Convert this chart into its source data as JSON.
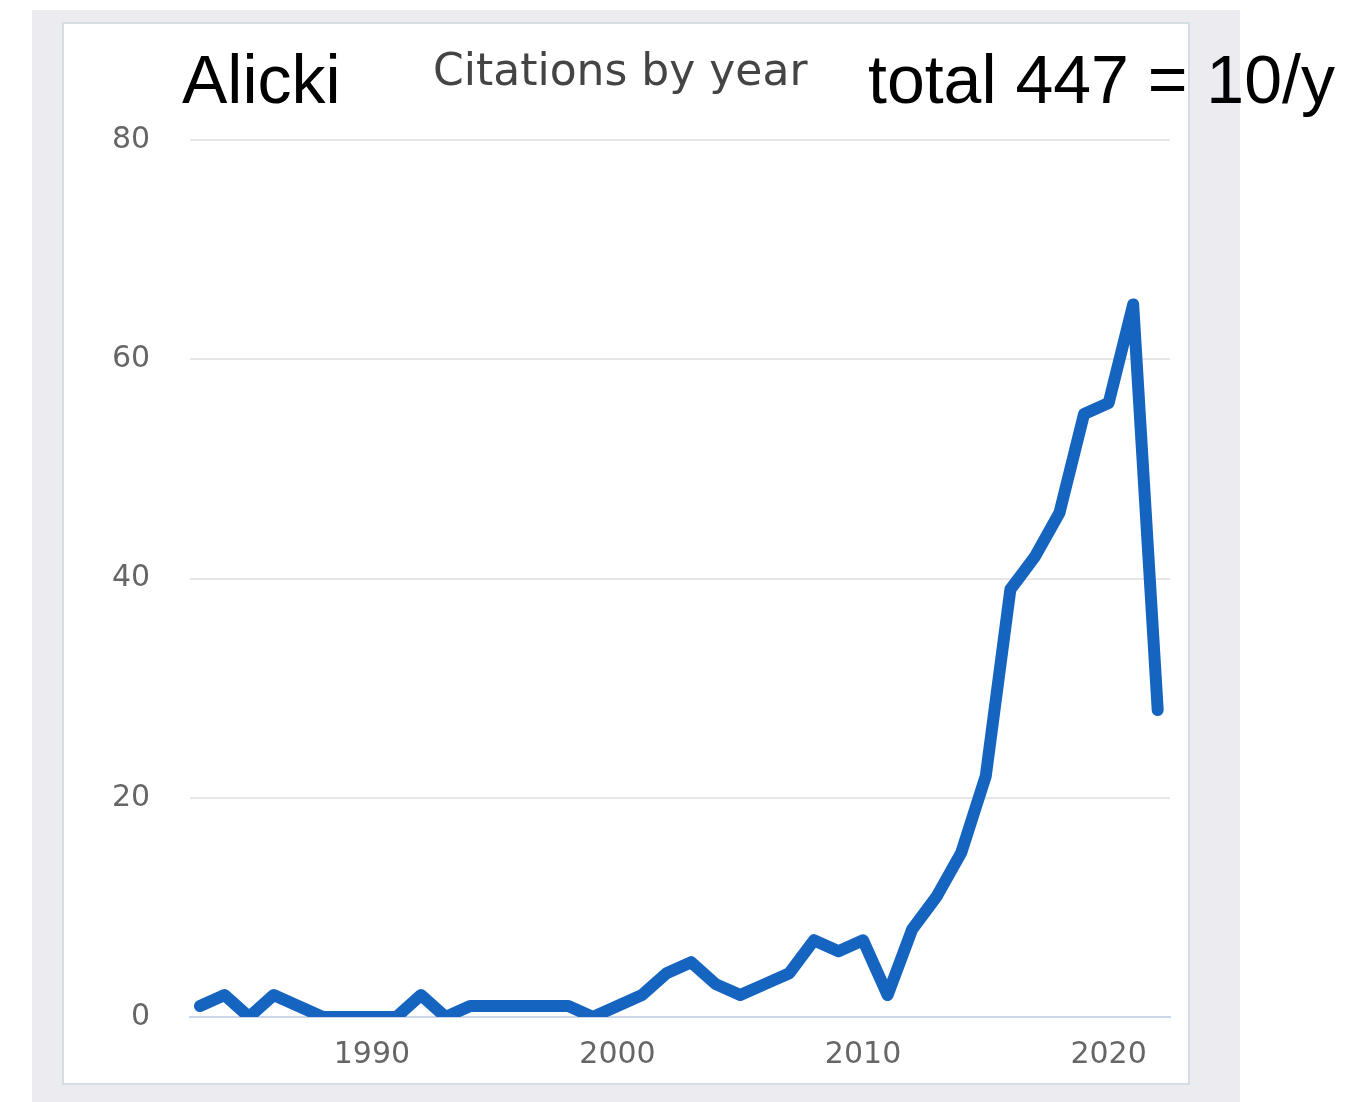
{
  "chart_data": {
    "type": "line",
    "title": "Citations by year",
    "annotations": [
      "Alicki",
      "total 447 = 10/y"
    ],
    "x": [
      1983,
      1984,
      1985,
      1986,
      1987,
      1988,
      1989,
      1990,
      1991,
      1992,
      1993,
      1994,
      1995,
      1996,
      1997,
      1998,
      1999,
      2000,
      2001,
      2002,
      2003,
      2004,
      2005,
      2006,
      2007,
      2008,
      2009,
      2010,
      2011,
      2012,
      2013,
      2014,
      2015,
      2016,
      2017,
      2018,
      2019,
      2020,
      2021,
      2022
    ],
    "values": [
      1,
      2,
      0,
      2,
      1,
      0,
      0,
      0,
      0,
      2,
      0,
      1,
      1,
      1,
      1,
      1,
      0,
      1,
      2,
      4,
      5,
      3,
      2,
      3,
      4,
      7,
      6,
      7,
      2,
      8,
      11,
      15,
      22,
      39,
      42,
      46,
      55,
      56,
      65,
      28
    ],
    "color": "#1565c0",
    "xlim": [
      1982.6,
      2022.5
    ],
    "xticks": [
      1990,
      2000,
      2010,
      2020
    ],
    "ylim": [
      0,
      80
    ],
    "yticks": [
      0,
      20,
      40,
      60,
      80
    ],
    "grid": "y",
    "marker": "none",
    "line_style": "solid",
    "legend": false
  }
}
